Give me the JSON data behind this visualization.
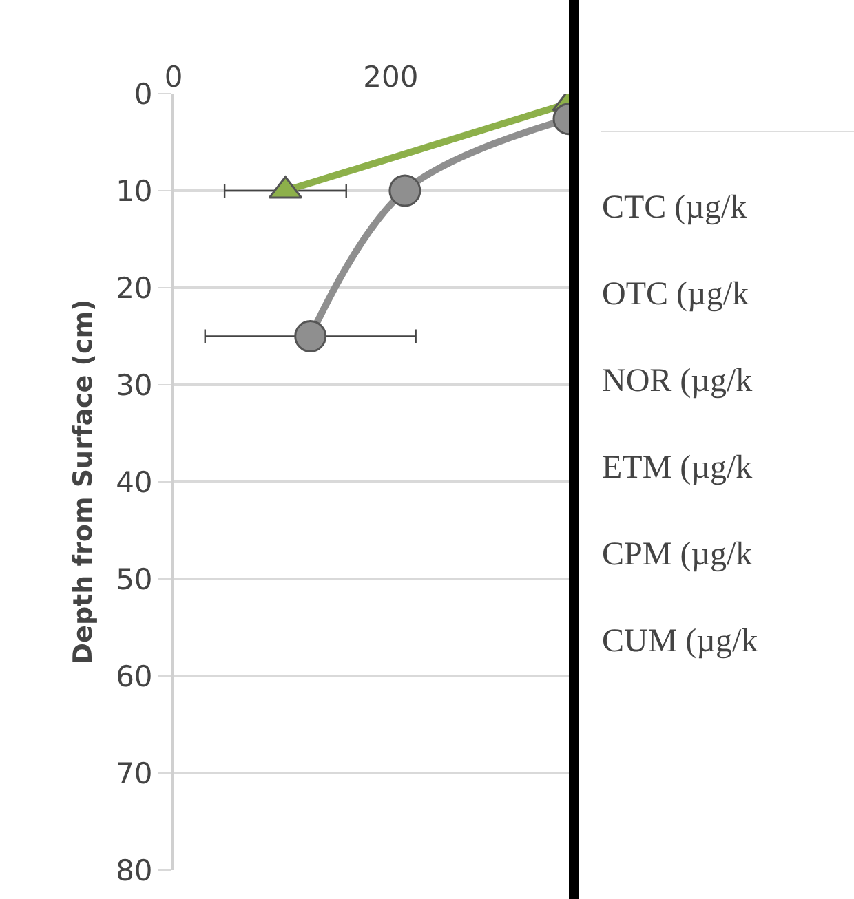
{
  "chart_data": {
    "type": "line",
    "ylabel": "Depth from Surface (cm)",
    "xlim": [
      0,
      364
    ],
    "xticks": [
      0,
      200
    ],
    "ylim": [
      80,
      0
    ],
    "yticks": [
      0,
      10,
      20,
      30,
      40,
      50,
      60,
      70,
      80
    ],
    "grid": "y",
    "series": [
      {
        "color": "#8db04a",
        "marker": "triangle",
        "x": [
          364,
          103
        ],
        "values": [
          1,
          10
        ],
        "xerrors": [
          null,
          56
        ]
      },
      {
        "color": "#8f8f8f",
        "marker": "circle",
        "x": [
          364,
          213,
          126
        ],
        "values": [
          2.6,
          10,
          25
        ],
        "xerrors": [
          null,
          null,
          97
        ]
      }
    ],
    "annotations": [
      "CTC (µg/k",
      "OTC (µg/k",
      "NOR (µg/k",
      "ETM (µg/k",
      "CPM (µg/k",
      "CUM (µg/k"
    ]
  }
}
